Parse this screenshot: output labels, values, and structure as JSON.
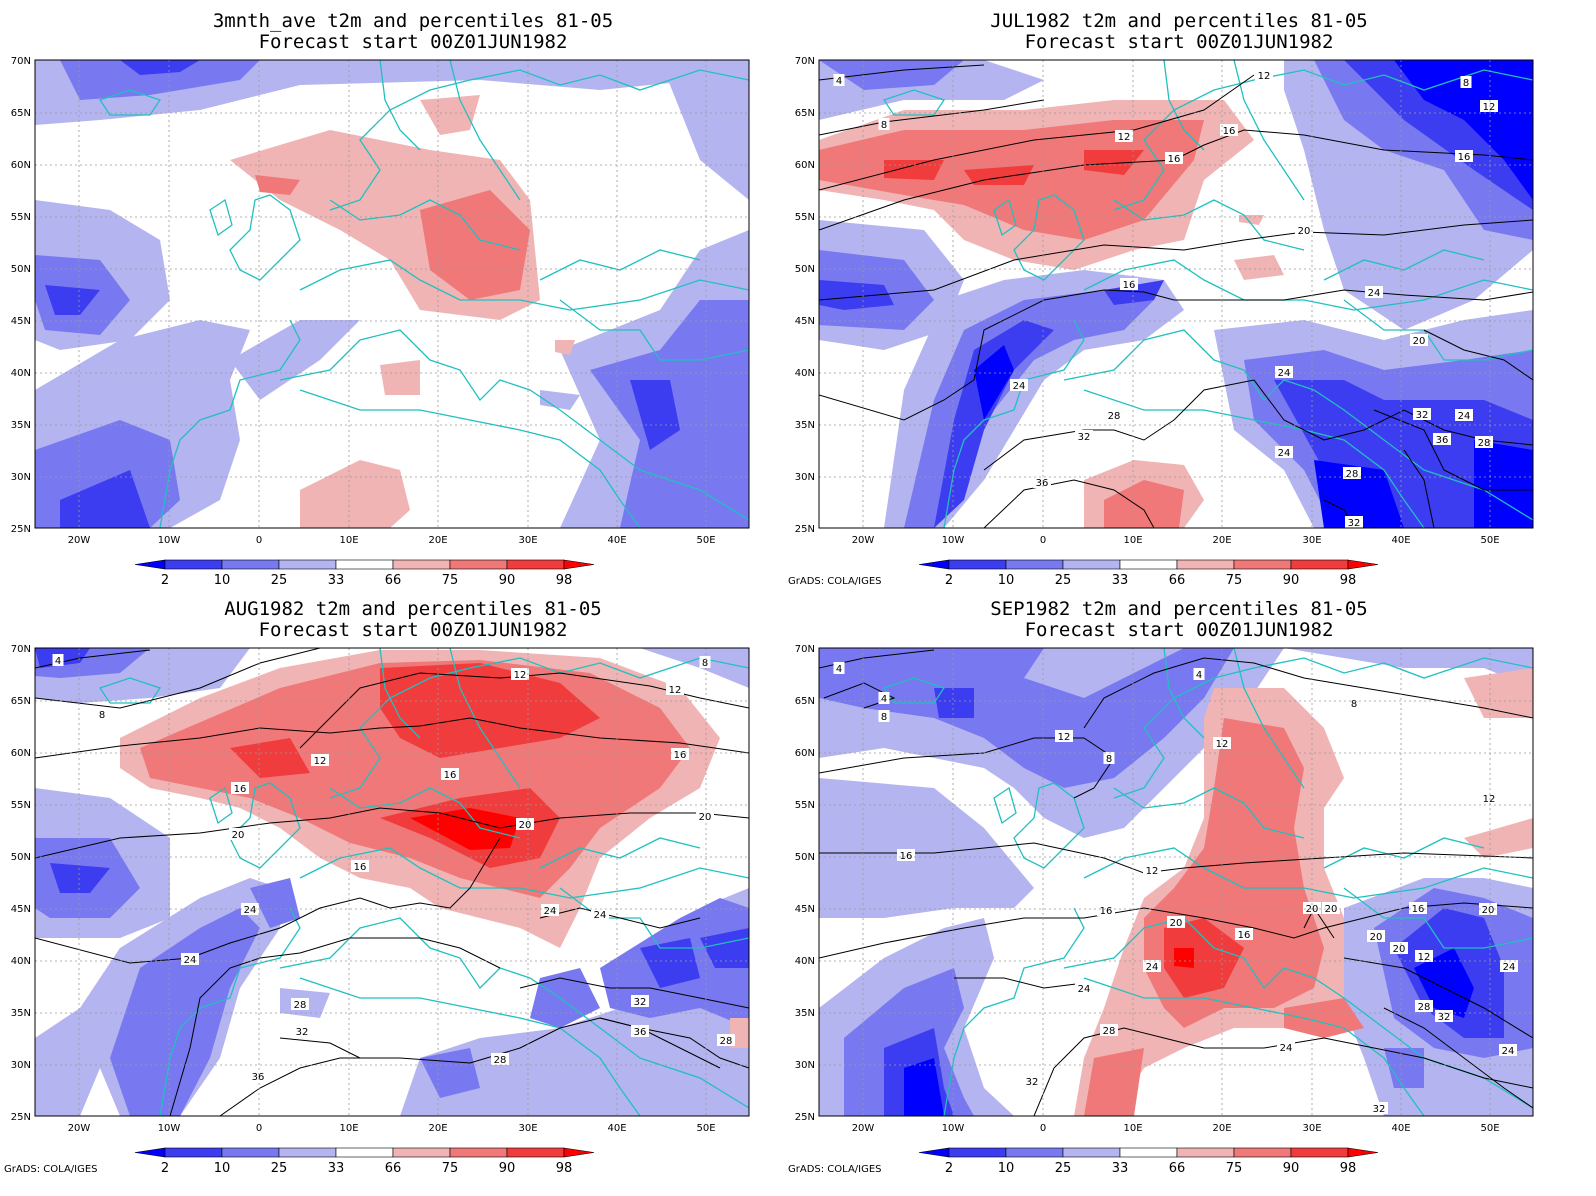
{
  "panels": [
    {
      "title": "3mnth_ave t2m and percentiles 81-05",
      "subtitle": "Forecast start 00Z01JUN1982",
      "credit": ""
    },
    {
      "title": "JUL1982 t2m and percentiles 81-05",
      "subtitle": "Forecast start 00Z01JUN1982",
      "credit": "GrADS: COLA/IGES"
    },
    {
      "title": "AUG1982 t2m and percentiles 81-05",
      "subtitle": "Forecast start 00Z01JUN1982",
      "credit": "GrADS: COLA/IGES"
    },
    {
      "title": "SEP1982 t2m and percentiles 81-05",
      "subtitle": "Forecast start 00Z01JUN1982",
      "credit": "GrADS: COLA/IGES"
    }
  ],
  "lat_labels": [
    "70N",
    "65N",
    "60N",
    "55N",
    "50N",
    "45N",
    "40N",
    "35N",
    "30N",
    "25N"
  ],
  "lon_labels": [
    "20W",
    "10W",
    "0",
    "10E",
    "20E",
    "30E",
    "40E",
    "50E"
  ],
  "colorbar": {
    "labels": [
      "2",
      "10",
      "25",
      "33",
      "66",
      "75",
      "90",
      "98"
    ],
    "colors": [
      "#0000ff",
      "#3c3cf0",
      "#7878f0",
      "#b4b4f0",
      "#ffffff",
      "#f0b4b4",
      "#f07878",
      "#f03c3c",
      "#ff0000"
    ]
  },
  "colors": {
    "coast": "#20c0c0",
    "contour": "#000000",
    "grid": "#9a9a9a"
  },
  "contour_labels": [
    [],
    [
      "4",
      "8",
      "12",
      "12",
      "16",
      "16",
      "16",
      "20",
      "24",
      "20",
      "24",
      "24",
      "28",
      "32",
      "24",
      "32",
      "36",
      "28",
      "36",
      "24",
      "28",
      "32",
      "16",
      "8",
      "12"
    ],
    [
      "4",
      "8",
      "12",
      "12",
      "16",
      "16",
      "16",
      "20",
      "24",
      "24",
      "20",
      "24",
      "28",
      "32",
      "36",
      "24",
      "32",
      "28",
      "36",
      "28",
      "20",
      "12",
      "8",
      "16"
    ],
    [
      "4",
      "4",
      "8",
      "12",
      "8",
      "12",
      "4",
      "8",
      "12",
      "16",
      "16",
      "12",
      "20",
      "16",
      "20",
      "20",
      "20",
      "24",
      "24",
      "24",
      "28",
      "32",
      "28",
      "32",
      "24",
      "20",
      "16",
      "12",
      "20",
      "32",
      "24"
    ]
  ]
}
